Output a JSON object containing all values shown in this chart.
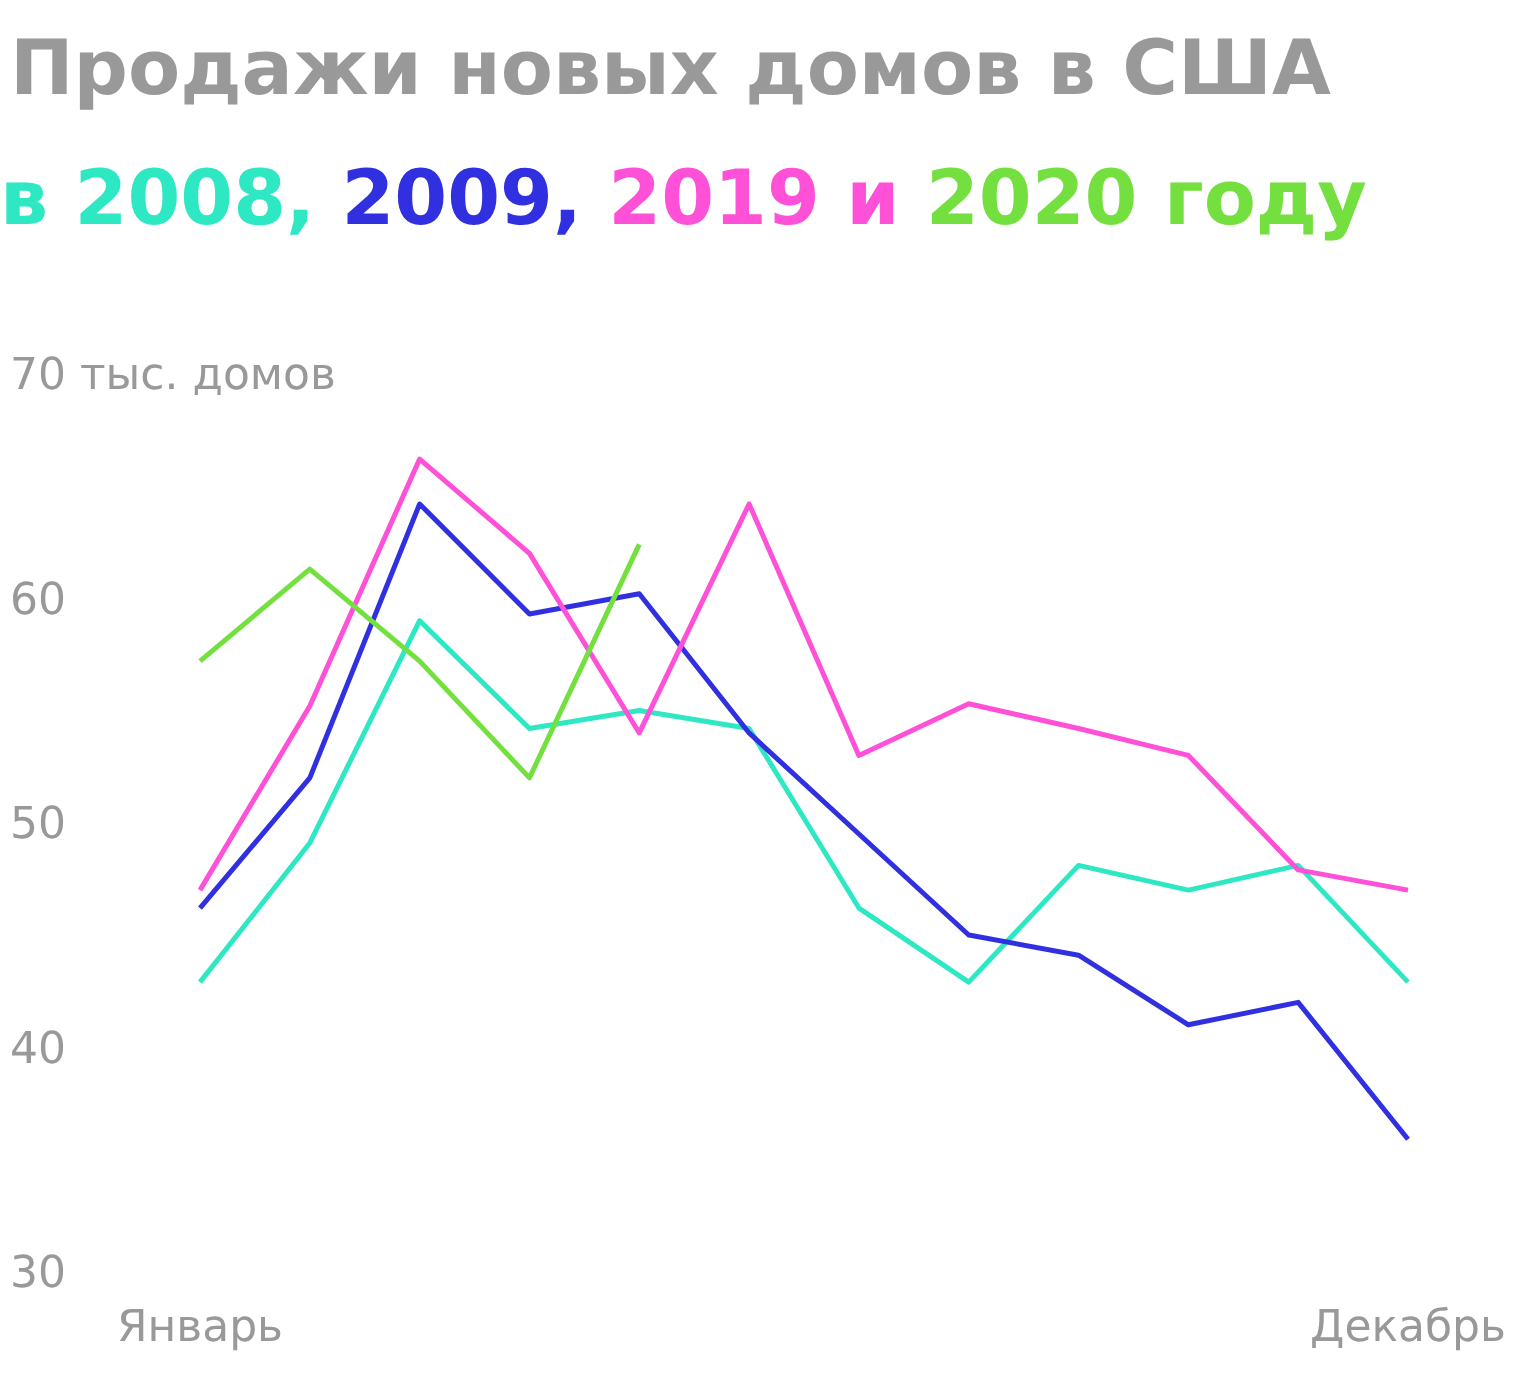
{
  "chart_data": {
    "type": "line",
    "title": "Продажи новых домов в США",
    "annotations": [
      "в ",
      ", ",
      ", ",
      " и ",
      " году"
    ],
    "categories": [
      "Январь",
      null,
      null,
      null,
      null,
      null,
      null,
      null,
      null,
      null,
      null,
      "Декабрь"
    ],
    "series": [
      {
        "name": "2008",
        "color": "#2ee8c4",
        "values": [
          43.0,
          49.2,
          59.1,
          54.3,
          55.1,
          54.3,
          46.3,
          43.0,
          48.2,
          47.1,
          48.2,
          43.0
        ]
      },
      {
        "name": "2009",
        "color": "#3030e0",
        "values": [
          46.3,
          52.1,
          64.3,
          59.4,
          60.3,
          54.1,
          49.6,
          45.1,
          44.2,
          41.1,
          42.1,
          36.0
        ]
      },
      {
        "name": "2019",
        "color": "#ff50d8",
        "values": [
          47.1,
          55.3,
          66.3,
          62.1,
          54.1,
          64.3,
          53.1,
          55.4,
          54.3,
          53.1,
          48.0,
          47.1
        ]
      },
      {
        "name": "2020",
        "color": "#74e040",
        "values": [
          57.3,
          61.4,
          57.3,
          52.1,
          62.5,
          null,
          null,
          null,
          null,
          null,
          null,
          null
        ]
      }
    ],
    "ylim": [
      30,
      70
    ],
    "yticks": [
      30,
      40,
      50,
      60,
      {
        "value": 70,
        "label": "70 тыс. домов"
      }
    ],
    "grid": false,
    "legend": false,
    "marker": "none",
    "line_style": "solid"
  }
}
